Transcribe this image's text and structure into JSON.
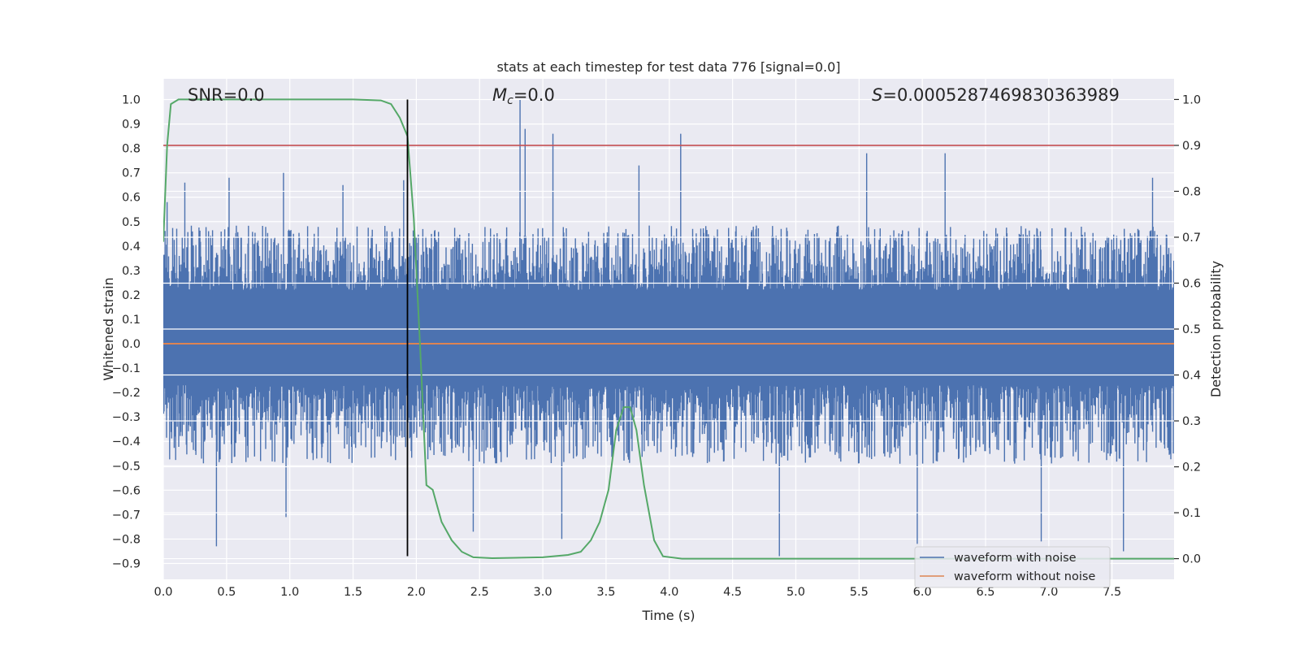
{
  "chart_data": {
    "type": "line",
    "title": "stats at each timestep for test data 776 [signal=0.0]",
    "xlabel": "Time (s)",
    "ylabel_left": "Whitened strain",
    "ylabel_right": "Detection probability",
    "xlim": [
      0.0,
      7.99
    ],
    "ylim_left": [
      -0.965,
      1.085
    ],
    "ylim_right": [
      -0.045,
      1.045
    ],
    "x_ticks": [
      "0.0",
      "0.5",
      "1.0",
      "1.5",
      "2.0",
      "2.5",
      "3.0",
      "3.5",
      "4.0",
      "4.5",
      "5.0",
      "5.5",
      "6.0",
      "6.5",
      "7.0",
      "7.5"
    ],
    "y_ticks_left": [
      "1.0",
      "0.9",
      "0.8",
      "0.7",
      "0.6",
      "0.5",
      "0.4",
      "0.3",
      "0.2",
      "0.1",
      "0.0",
      "−0.1",
      "−0.2",
      "−0.3",
      "−0.4",
      "−0.5",
      "−0.6",
      "−0.7",
      "−0.8",
      "−0.9"
    ],
    "y_ticks_right": [
      "1.0",
      "0.9",
      "0.8",
      "0.7",
      "0.6",
      "0.5",
      "0.4",
      "0.3",
      "0.2",
      "0.1",
      "0.0"
    ],
    "grid": true,
    "legend_position": "lower-right",
    "annotations": {
      "snr": "SNR=0.0",
      "mc_symbol": "M",
      "mc_sub": "c",
      "mc_value": "=0.0",
      "s_symbol": "S",
      "s_value": "=0.0005287469830363989"
    },
    "series": [
      {
        "name": "waveform with noise",
        "axis": "left",
        "color": "#4c72b0",
        "style": "dense noise band",
        "envelope": {
          "upper_typical": 0.45,
          "lower_typical": -0.45,
          "max_peak": 1.0,
          "min_peak": -0.87
        },
        "peaks": [
          {
            "x": 0.03,
            "y": 0.58
          },
          {
            "x": 0.17,
            "y": 0.66
          },
          {
            "x": 0.42,
            "y": -0.83
          },
          {
            "x": 0.52,
            "y": 0.68
          },
          {
            "x": 0.95,
            "y": 0.7
          },
          {
            "x": 0.97,
            "y": -0.71
          },
          {
            "x": 1.42,
            "y": 0.65
          },
          {
            "x": 1.9,
            "y": 0.67
          },
          {
            "x": 2.45,
            "y": -0.77
          },
          {
            "x": 2.82,
            "y": 1.0
          },
          {
            "x": 2.86,
            "y": 0.88
          },
          {
            "x": 3.08,
            "y": 0.86
          },
          {
            "x": 3.15,
            "y": -0.8
          },
          {
            "x": 3.76,
            "y": 0.73
          },
          {
            "x": 4.09,
            "y": 0.86
          },
          {
            "x": 4.87,
            "y": -0.87
          },
          {
            "x": 5.56,
            "y": 0.78
          },
          {
            "x": 5.96,
            "y": -0.82
          },
          {
            "x": 6.18,
            "y": 0.78
          },
          {
            "x": 6.94,
            "y": -0.81
          },
          {
            "x": 7.59,
            "y": -0.85
          },
          {
            "x": 7.82,
            "y": 0.68
          }
        ]
      },
      {
        "name": "waveform without noise",
        "axis": "left",
        "color": "#dd8452",
        "x": [
          0.0,
          7.99
        ],
        "y": [
          0.0,
          0.0
        ]
      },
      {
        "name": "",
        "axis": "right",
        "color": "#55a868",
        "x": [
          0.0,
          0.03,
          0.06,
          0.12,
          0.3,
          1.0,
          1.5,
          1.72,
          1.8,
          1.87,
          1.93,
          1.98,
          2.03,
          2.08,
          2.13,
          2.2,
          2.28,
          2.36,
          2.45,
          2.6,
          3.0,
          3.2,
          3.3,
          3.38,
          3.45,
          3.52,
          3.58,
          3.64,
          3.69,
          3.74,
          3.8,
          3.88,
          3.95,
          4.1,
          7.99
        ],
        "y": [
          0.69,
          0.9,
          0.99,
          1.0,
          1.0,
          1.0,
          1.0,
          0.998,
          0.99,
          0.96,
          0.92,
          0.74,
          0.46,
          0.16,
          0.15,
          0.08,
          0.04,
          0.015,
          0.003,
          0.001,
          0.003,
          0.008,
          0.015,
          0.04,
          0.08,
          0.15,
          0.28,
          0.33,
          0.33,
          0.28,
          0.16,
          0.04,
          0.005,
          0.0,
          0.0
        ]
      },
      {
        "name": "",
        "axis": "right",
        "color": "#c44e52",
        "type": "threshold",
        "y": 0.9
      },
      {
        "name": "",
        "axis": "left",
        "color": "#000000",
        "type": "vertical-marker",
        "x": 1.93,
        "y_range": [
          -0.87,
          1.0
        ]
      }
    ]
  }
}
